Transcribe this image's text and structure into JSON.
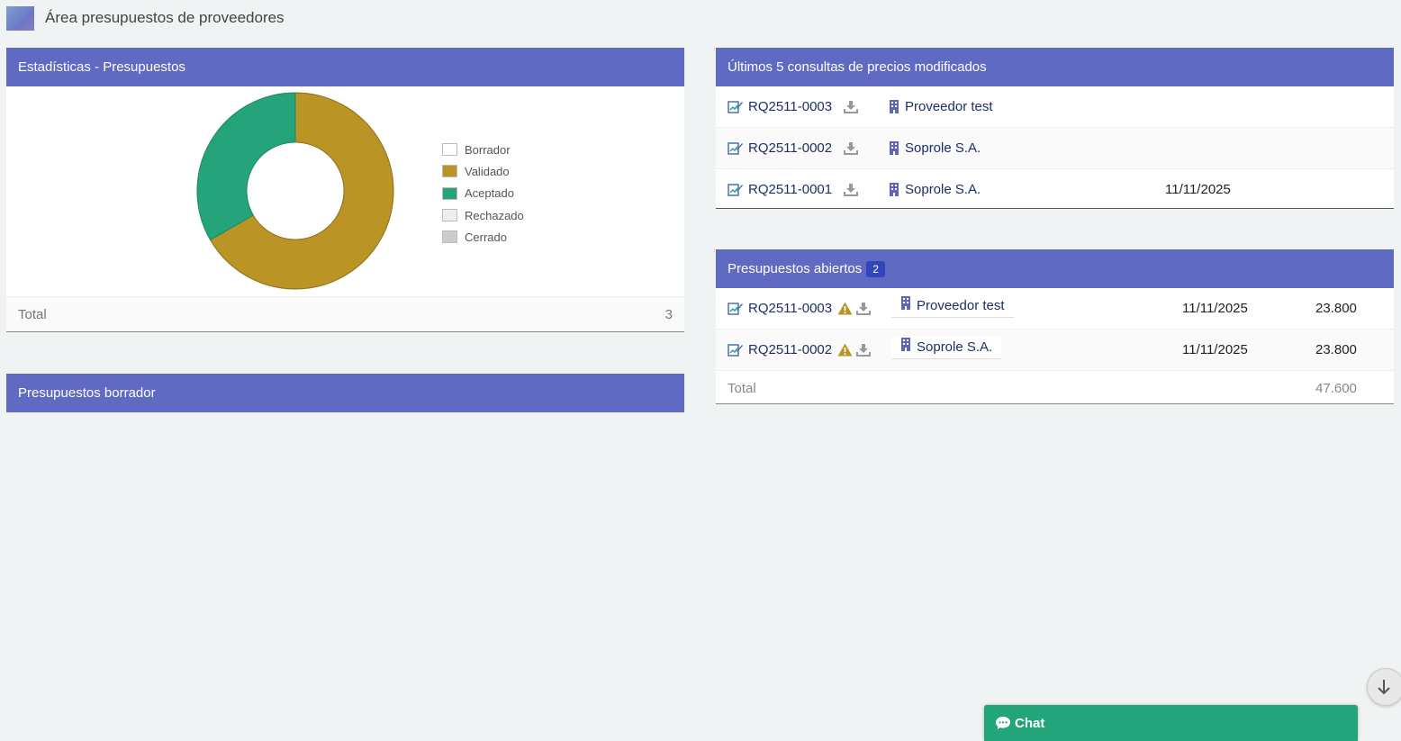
{
  "page": {
    "title": "Área presupuestos de proveedores"
  },
  "stats_panel": {
    "title": "Estadísticas - Presupuestos",
    "total_label": "Total",
    "total_value": "3"
  },
  "chart_data": {
    "type": "pie",
    "categories": [
      "Borrador",
      "Validado",
      "Aceptado",
      "Rechazado",
      "Cerrado"
    ],
    "values": [
      0,
      2,
      1,
      0,
      0
    ],
    "colors": [
      "#ffffff",
      "#bb9426",
      "#25a47b",
      "#eeeeee",
      "#cccccc"
    ],
    "donut": true,
    "legend": "right"
  },
  "draft_panel": {
    "title": "Presupuestos borrador"
  },
  "recent_panel": {
    "title": "Últimos 5 consultas de precios modificados",
    "rows": [
      {
        "ref": "RQ2511-0003",
        "supplier": "Proveedor test",
        "date": ""
      },
      {
        "ref": "RQ2511-0002",
        "supplier": "Soprole S.A.",
        "date": ""
      },
      {
        "ref": "RQ2511-0001",
        "supplier": "Soprole S.A.",
        "date": "11/11/2025"
      }
    ]
  },
  "open_panel": {
    "title": "Presupuestos abiertos",
    "count": "2",
    "rows": [
      {
        "ref": "RQ2511-0003",
        "supplier": "Proveedor test",
        "date": "11/11/2025",
        "amount": "23.800"
      },
      {
        "ref": "RQ2511-0002",
        "supplier": "Soprole S.A.",
        "date": "11/11/2025",
        "amount": "23.800"
      }
    ],
    "total_label": "Total",
    "total_value": "47.600"
  },
  "chat": {
    "label": "Chat"
  },
  "icons": {
    "document": "document-edit-icon",
    "download": "download-icon",
    "warning": "warning-icon",
    "building": "building-icon",
    "scroll": "arrow-down-icon",
    "chat": "chat-bubble-icon"
  }
}
